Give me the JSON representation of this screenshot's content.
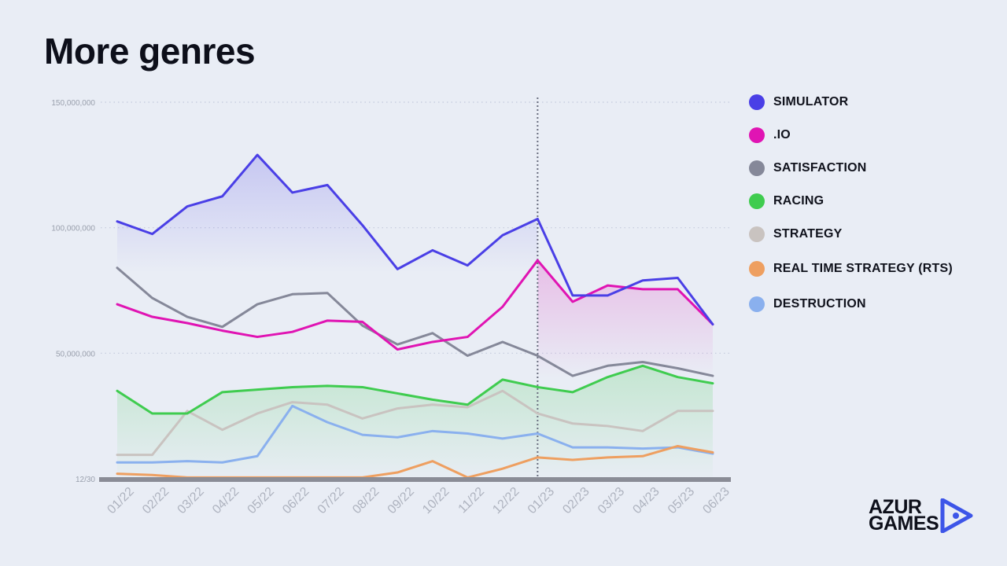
{
  "title": "More genres",
  "logo": {
    "line1": "AZUR",
    "line2": "GAMES",
    "accent": "#3d55e8",
    "icon": "play-arrow-logo-icon"
  },
  "chart_data": {
    "type": "line",
    "title": "More genres",
    "xlabel": "",
    "ylabel": "",
    "categories": [
      "01/22",
      "02/22",
      "03/22",
      "04/22",
      "05/22",
      "06/22",
      "07/22",
      "08/22",
      "09/22",
      "10/22",
      "11/22",
      "12/22",
      "01/23",
      "02/23",
      "03/23",
      "04/23",
      "05/23",
      "06/23"
    ],
    "ylim": [
      0,
      150000000
    ],
    "y_ticks": [
      {
        "value": 0,
        "label": "12/30"
      },
      {
        "value": 50000000,
        "label": "50,000,000"
      },
      {
        "value": 100000000,
        "label": "100,000,000"
      },
      {
        "value": 150000000,
        "label": "150,000,000"
      }
    ],
    "grid": "horizontal dotted",
    "vertical_marker_at": "01/23",
    "legend_position": "right",
    "series": [
      {
        "name": "SIMULATOR",
        "color": "#4a3fe6",
        "fill": true,
        "values": [
          102500000,
          97500000,
          108500000,
          112500000,
          129000000,
          114000000,
          117000000,
          101000000,
          83500000,
          91000000,
          85000000,
          97000000,
          103500000,
          73000000,
          73000000,
          79000000,
          80000000,
          61500000
        ]
      },
      {
        "name": ".IO",
        "color": "#e014b3",
        "fill": true,
        "values": [
          69500000,
          64500000,
          62000000,
          59000000,
          56500000,
          58500000,
          63000000,
          62500000,
          51500000,
          54500000,
          56500000,
          68500000,
          87000000,
          70500000,
          77000000,
          75500000,
          75500000,
          61500000
        ]
      },
      {
        "name": "SATISFACTION",
        "color": "#858899",
        "fill": false,
        "values": [
          84000000,
          72000000,
          64500000,
          60500000,
          69500000,
          73500000,
          74000000,
          61000000,
          53500000,
          58000000,
          49000000,
          54500000,
          49000000,
          41000000,
          45000000,
          46500000,
          44000000,
          41000000
        ]
      },
      {
        "name": "RACING",
        "color": "#3fcc4f",
        "fill": true,
        "values": [
          35000000,
          26000000,
          26000000,
          34500000,
          35500000,
          36500000,
          37000000,
          36500000,
          34000000,
          31500000,
          29500000,
          39500000,
          36500000,
          34500000,
          40500000,
          45000000,
          40500000,
          38000000
        ]
      },
      {
        "name": "STRATEGY",
        "color": "#c9c3c0",
        "fill": false,
        "values": [
          9500000,
          9500000,
          27000000,
          19500000,
          26000000,
          30500000,
          29500000,
          24000000,
          28000000,
          29500000,
          28500000,
          35000000,
          26000000,
          22000000,
          21000000,
          19000000,
          27000000,
          27000000
        ]
      },
      {
        "name": "REAL TIME STRATEGY (RTS)",
        "color": "#ee9f60",
        "fill": false,
        "values": [
          2000000,
          1500000,
          500000,
          500000,
          500000,
          500000,
          500000,
          500000,
          2500000,
          7000000,
          500000,
          4000000,
          8500000,
          7500000,
          8500000,
          9000000,
          13000000,
          10500000
        ]
      },
      {
        "name": "DESTRUCTION",
        "color": "#8ab0ee",
        "fill": false,
        "values": [
          6500000,
          6500000,
          7000000,
          6500000,
          9000000,
          29000000,
          22500000,
          17500000,
          16500000,
          19000000,
          18000000,
          16000000,
          18000000,
          12500000,
          12500000,
          12000000,
          12500000,
          10000000
        ]
      }
    ]
  }
}
